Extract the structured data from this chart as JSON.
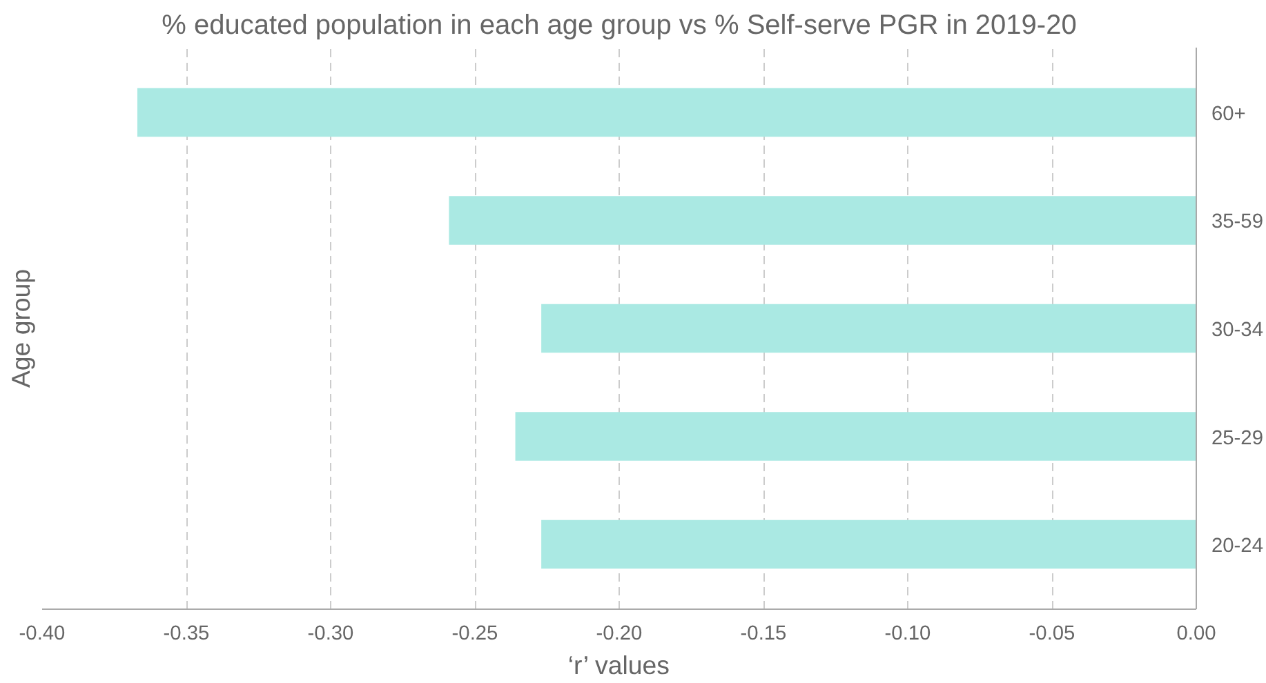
{
  "chart_data": {
    "type": "bar",
    "orientation": "horizontal",
    "title": "% educated population in each age group vs % Self-serve PGR in 2019-20",
    "xlabel": "‘r’ values",
    "ylabel": "Age group",
    "categories": [
      "60+",
      "35-59",
      "30-34",
      "25-29",
      "20-24"
    ],
    "values": [
      -0.367,
      -0.259,
      -0.227,
      -0.236,
      -0.227
    ],
    "color": "#aae9e3",
    "xlim": [
      -0.4,
      0.0
    ],
    "xticks": [
      {
        "value": -0.4,
        "label": "-0.40"
      },
      {
        "value": -0.35,
        "label": "-0.35"
      },
      {
        "value": -0.3,
        "label": "-0.30"
      },
      {
        "value": -0.25,
        "label": "-0.25"
      },
      {
        "value": -0.2,
        "label": "-0.20"
      },
      {
        "value": -0.15,
        "label": "-0.15"
      },
      {
        "value": -0.1,
        "label": "-0.10"
      },
      {
        "value": -0.05,
        "label": "-0.05"
      },
      {
        "value": 0.0,
        "label": "0.00"
      }
    ],
    "grid": "x"
  }
}
